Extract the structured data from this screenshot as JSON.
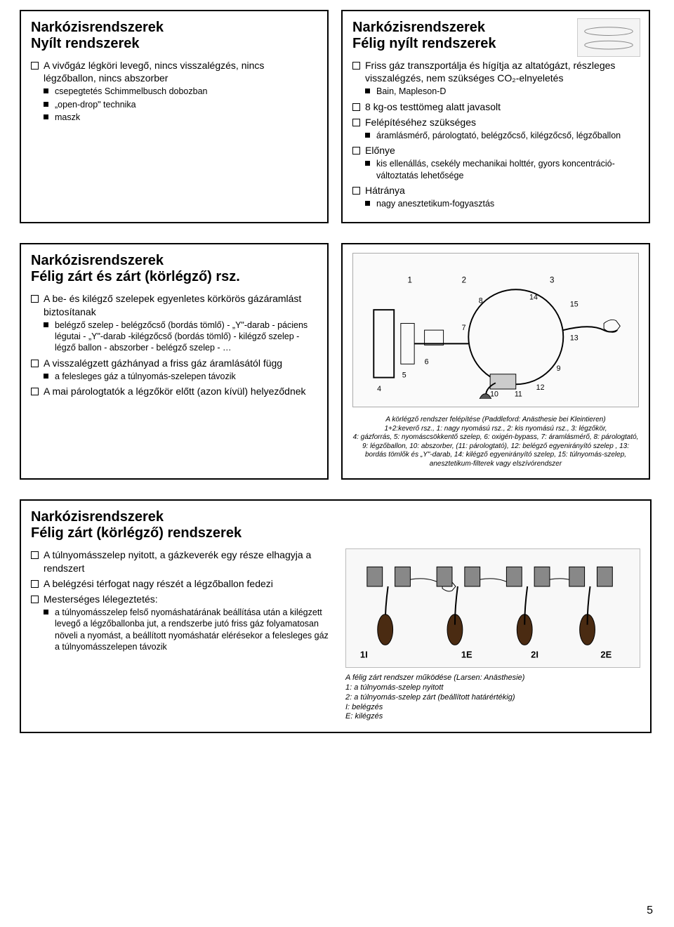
{
  "slide1": {
    "title": "Narkózisrendszerek\nNyílt rendszerek",
    "b1": "A vivőgáz légköri levegő, nincs visszalégzés, nincs légzőballon, nincs abszorber",
    "s1": "csepegtetés Schimmelbusch dobozban",
    "s2": "„open-drop\" technika",
    "s3": "maszk"
  },
  "slide2": {
    "title": "Narkózisrendszerek\nFélig nyílt rendszerek",
    "b1": "Friss gáz transzportálja és hígítja az altatógázt, részleges visszalégzés, nem szükséges CO₂-elnyeletés",
    "s1": "Bain, Mapleson-D",
    "b2": "8 kg-os testtömeg alatt javasolt",
    "b3": "Felépítéséhez szükséges",
    "s2": "áramlásmérő, párologtató, belégzőcső, kilégzőcső, légzőballon",
    "b4": "Előnye",
    "s3": "kis ellenállás, csekély mechanikai holttér, gyors koncentráció-változtatás lehetősége",
    "b5": "Hátránya",
    "s4": "nagy anesztetikum-fogyasztás"
  },
  "slide3": {
    "title": "Narkózisrendszerek\nFélig zárt és zárt (körlégző) rsz.",
    "b1": "A be- és kilégző szelepek egyenletes körkörös gázáramlást biztosítanak",
    "s1": "belégző szelep - belégzőcső (bordás tömlő) - „Y\"-darab - páciens légutai - „Y\"-darab -kilégzőcső (bordás tömlő) - kilégző szelep - légző ballon - abszorber - belégző szelep - …",
    "b2": "A visszalégzett gázhányad a friss gáz áramlásától függ",
    "s2": "a felesleges gáz a túlnyomás-szelepen távozik",
    "b3": "A mai párologtatók a légzőkör előtt (azon kívül) helyeződnek"
  },
  "slide4": {
    "caption1": "A körlégző rendszer felépítése (Paddleford: Anästhesie bei Kleintieren)",
    "caption2": "1+2:keverő rsz., 1: nagy nyomású rsz., 2: kis nyomású rsz., 3: légzőkör,",
    "caption3": "4: gázforrás, 5: nyomáscsökkentő szelep, 6: oxigén-bypass, 7: áramlásmérő, 8: párologtató, 9: légzőballon, 10: abszorber, (11: párologtató), 12: belégző egyenirányító szelep , 13: bordás tömlők és „Y\"-darab, 14: kilégző egyenirányító szelep, 15: túlnyomás-szelep, anesztetikum-filterek vagy elszívórendszer"
  },
  "slide5": {
    "title": "Narkózisrendszerek\nFélig zárt (körlégző) rendszerek",
    "b1": "A túlnyomásszelep nyitott, a gázkeverék egy része elhagyja a rendszert",
    "b2": "A belégzési térfogat nagy részét a légzőballon fedezi",
    "b3": "Mesterséges lélegeztetés:",
    "s1": "a túlnyomásszelep felső nyomáshatárának beállítása után a kilégzett levegő a légzőballonba jut, a rendszerbe jutó friss gáz folyamatosan növeli a nyomást, a beállított nyomáshatár elérésekor a felesleges gáz a túlnyomásszelepen távozik",
    "cap1": "A félig zárt rendszer működése (Larsen: Anästhesie)",
    "cap2": "1: a túlnyomás-szelep nyitott",
    "cap3": "2: a túlnyomás-szelep zárt (beállított határértékig)",
    "cap4": "I: belégzés",
    "cap5": "E: kilégzés",
    "dlabels": {
      "a": "1I",
      "b": "1E",
      "c": "2I",
      "d": "2E"
    }
  },
  "pagenum": "5"
}
